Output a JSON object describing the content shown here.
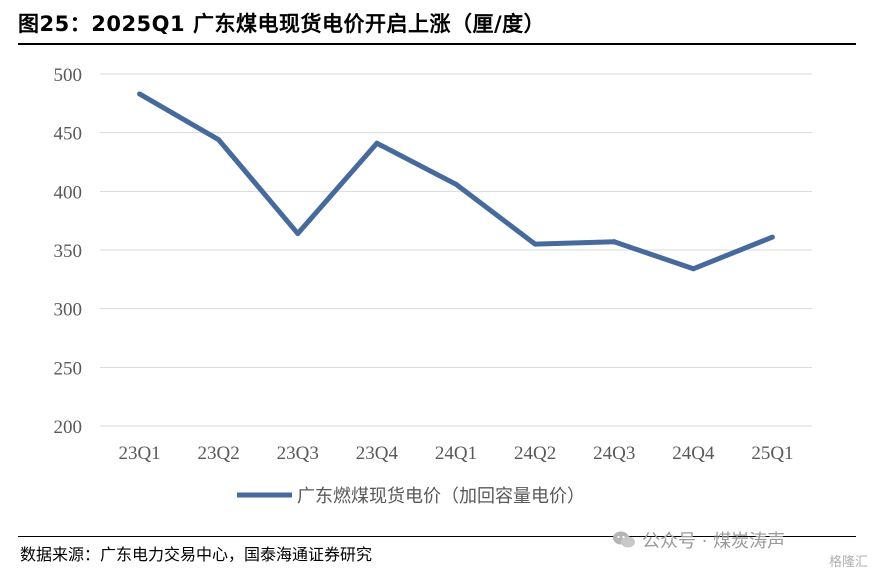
{
  "title": "图25：2025Q1 广东煤电现货电价开启上涨（厘/度）",
  "source": "数据来源：广东电力交易中心，国泰海通证券研究",
  "watermark": "公众号 · 煤炭涛声",
  "corner_mark": "格隆汇",
  "colors": {
    "line": "#466a9b",
    "grid": "#d9d9d9",
    "tick_text": "#595959"
  },
  "chart_data": {
    "type": "line",
    "title": "",
    "xlabel": "",
    "ylabel": "",
    "categories": [
      "23Q1",
      "23Q2",
      "23Q3",
      "23Q4",
      "24Q1",
      "24Q2",
      "24Q3",
      "24Q4",
      "25Q1"
    ],
    "ylim": [
      200,
      500
    ],
    "yticks": [
      200,
      250,
      300,
      350,
      400,
      450,
      500
    ],
    "grid": true,
    "legend_position": "bottom",
    "series": [
      {
        "name": "广东燃煤现货电价（加回容量电价）",
        "values": [
          483,
          444,
          364,
          441,
          406,
          355,
          357,
          334,
          361
        ]
      }
    ]
  }
}
